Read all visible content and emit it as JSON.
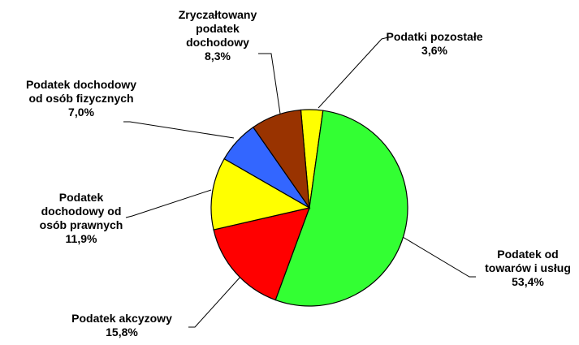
{
  "chart_data": {
    "type": "pie",
    "categories": [
      "Podatki pozostałe",
      "Podatek od towarów i usług",
      "Podatek akcyzowy",
      "Podatek dochodowy od osób prawnych",
      "Podatek dochodowy od osób fizycznych",
      "Zryczałtowany podatek dochodowy"
    ],
    "values": [
      3.6,
      53.4,
      15.8,
      11.9,
      7.0,
      8.3
    ],
    "value_labels": [
      "3,6%",
      "53,4%",
      "15,8%",
      "11,9%",
      "7,0%",
      "8,3%"
    ],
    "colors": [
      "#ffff00",
      "#33ff33",
      "#ff0000",
      "#ffff00",
      "#3366ff",
      "#993300"
    ]
  }
}
